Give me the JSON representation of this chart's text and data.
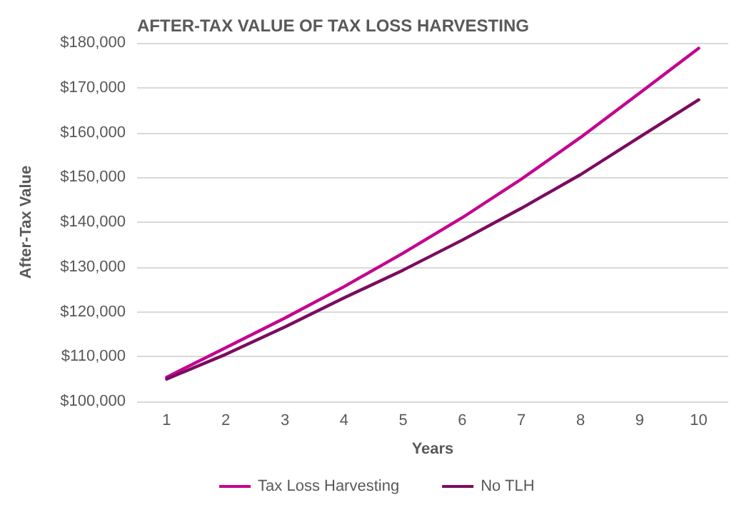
{
  "chart_data": {
    "type": "line",
    "title": "AFTER-TAX VALUE OF TAX LOSS HARVESTING",
    "xlabel": "Years",
    "ylabel": "After-Tax Value",
    "categories": [
      "1",
      "2",
      "3",
      "4",
      "5",
      "6",
      "7",
      "8",
      "9",
      "10"
    ],
    "series": [
      {
        "name": "Tax Loss Harvesting",
        "color": "#c4058f",
        "values": [
          105400,
          112000,
          118600,
          125600,
          133100,
          141000,
          149600,
          158900,
          168800,
          178800
        ]
      },
      {
        "name": "No TLH",
        "color": "#7b0c5f",
        "values": [
          105000,
          110500,
          116600,
          123100,
          129300,
          136000,
          143100,
          150600,
          159000,
          167300
        ]
      }
    ],
    "ylim": [
      100000,
      180000
    ],
    "yticks": [
      {
        "value": 100000,
        "label": "$100,000"
      },
      {
        "value": 110000,
        "label": "$110,000"
      },
      {
        "value": 120000,
        "label": "$120,000"
      },
      {
        "value": 130000,
        "label": "$130,000"
      },
      {
        "value": 140000,
        "label": "$140,000"
      },
      {
        "value": 150000,
        "label": "$150,000"
      },
      {
        "value": 160000,
        "label": "$160,000"
      },
      {
        "value": 170000,
        "label": "$170,000"
      },
      {
        "value": 180000,
        "label": "$180,000"
      }
    ],
    "grid": "y",
    "legend": "bottom",
    "marker": "none",
    "line_style": "solid"
  }
}
